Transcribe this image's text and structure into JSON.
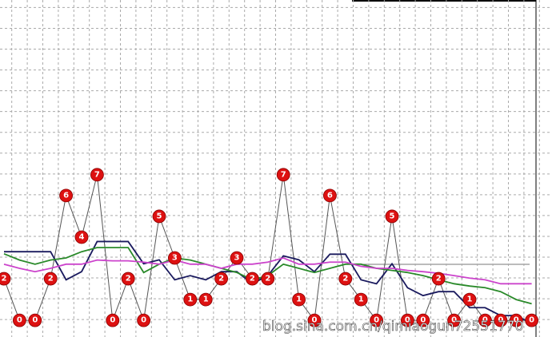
{
  "chart_data": {
    "type": "line",
    "categories": [
      null,
      null,
      null,
      null,
      null,
      null,
      null,
      null,
      null,
      null,
      null,
      null,
      null,
      null,
      null,
      null,
      null,
      null,
      null,
      null,
      null,
      null,
      null,
      null,
      null,
      null,
      null,
      null,
      null,
      null,
      null,
      null,
      null,
      null,
      null
    ],
    "series": [
      {
        "color": "#555555",
        "marker": "circle",
        "marker_color": "#dd1111",
        "values": [
          2,
          0,
          0,
          2,
          6,
          4,
          7,
          0,
          2,
          0,
          5,
          3,
          1,
          1,
          2,
          3,
          2,
          2,
          7,
          1,
          0,
          6,
          2,
          1,
          0,
          5,
          0,
          0,
          2,
          0,
          1,
          0,
          0,
          0,
          0
        ]
      },
      {
        "color": "#1a1a5e",
        "values": [
          3.3,
          3.3,
          3.3,
          3.3,
          1.95,
          2.34,
          3.79,
          3.79,
          3.79,
          2.72,
          2.91,
          1.95,
          2.15,
          1.95,
          2.34,
          2.34,
          1.76,
          2.15,
          3.1,
          2.91,
          2.34,
          3.18,
          3.18,
          1.95,
          1.76,
          2.72,
          1.57,
          1.19,
          1.38,
          1.38,
          0.61,
          0.61,
          0.23,
          0.23,
          -0.15
        ]
      },
      {
        "color": "#2a8a2a",
        "values": [
          3.2,
          2.9,
          2.7,
          2.9,
          3.0,
          3.3,
          3.5,
          3.5,
          3.5,
          2.3,
          2.7,
          3.0,
          2.9,
          2.7,
          2.5,
          2.3,
          1.95,
          2.15,
          2.7,
          2.5,
          2.3,
          2.5,
          2.7,
          2.7,
          2.5,
          2.4,
          2.3,
          2.15,
          1.95,
          1.76,
          1.65,
          1.57,
          1.38,
          1.0,
          0.8
        ]
      },
      {
        "color": "#cc44cc",
        "values": [
          2.7,
          2.5,
          2.34,
          2.5,
          2.7,
          2.7,
          2.9,
          2.86,
          2.86,
          2.8,
          2.7,
          2.9,
          2.7,
          2.7,
          2.5,
          2.7,
          2.7,
          2.8,
          3.0,
          2.7,
          2.7,
          2.8,
          2.8,
          2.6,
          2.5,
          2.5,
          2.4,
          2.34,
          2.26,
          2.15,
          2.03,
          1.95,
          1.76,
          1.76,
          1.76
        ]
      }
    ],
    "ylim": [
      -0.8,
      15.4
    ],
    "grid": true,
    "watermark": "blog.sina.com.cn/qimiaogun72551770"
  }
}
